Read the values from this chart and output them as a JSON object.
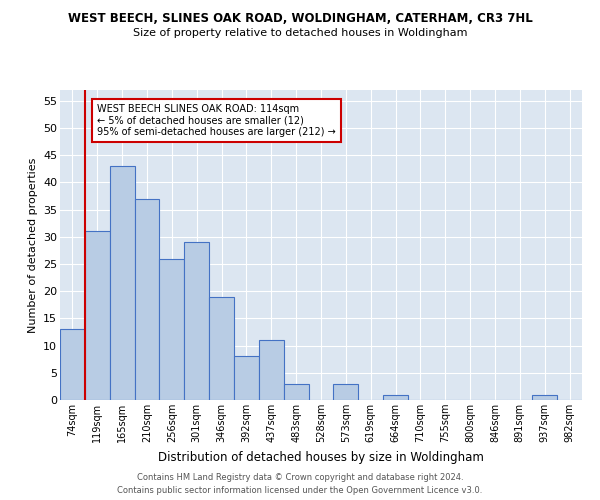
{
  "title1": "WEST BEECH, SLINES OAK ROAD, WOLDINGHAM, CATERHAM, CR3 7HL",
  "title2": "Size of property relative to detached houses in Woldingham",
  "xlabel": "Distribution of detached houses by size in Woldingham",
  "ylabel": "Number of detached properties",
  "categories": [
    "74sqm",
    "119sqm",
    "165sqm",
    "210sqm",
    "256sqm",
    "301sqm",
    "346sqm",
    "392sqm",
    "437sqm",
    "483sqm",
    "528sqm",
    "573sqm",
    "619sqm",
    "664sqm",
    "710sqm",
    "755sqm",
    "800sqm",
    "846sqm",
    "891sqm",
    "937sqm",
    "982sqm"
  ],
  "values": [
    13,
    31,
    43,
    37,
    26,
    29,
    19,
    8,
    11,
    3,
    0,
    3,
    0,
    1,
    0,
    0,
    0,
    0,
    0,
    1,
    0
  ],
  "bar_color": "#b8cce4",
  "bar_edge_color": "#4472c4",
  "bg_color": "#dce6f1",
  "vline_color": "#cc0000",
  "annotation_text": "WEST BEECH SLINES OAK ROAD: 114sqm\n← 5% of detached houses are smaller (12)\n95% of semi-detached houses are larger (212) →",
  "annotation_box_color": "#ffffff",
  "annotation_box_edge_color": "#cc0000",
  "footer1": "Contains HM Land Registry data © Crown copyright and database right 2024.",
  "footer2": "Contains public sector information licensed under the Open Government Licence v3.0.",
  "ylim": [
    0,
    57
  ],
  "yticks": [
    0,
    5,
    10,
    15,
    20,
    25,
    30,
    35,
    40,
    45,
    50,
    55
  ]
}
